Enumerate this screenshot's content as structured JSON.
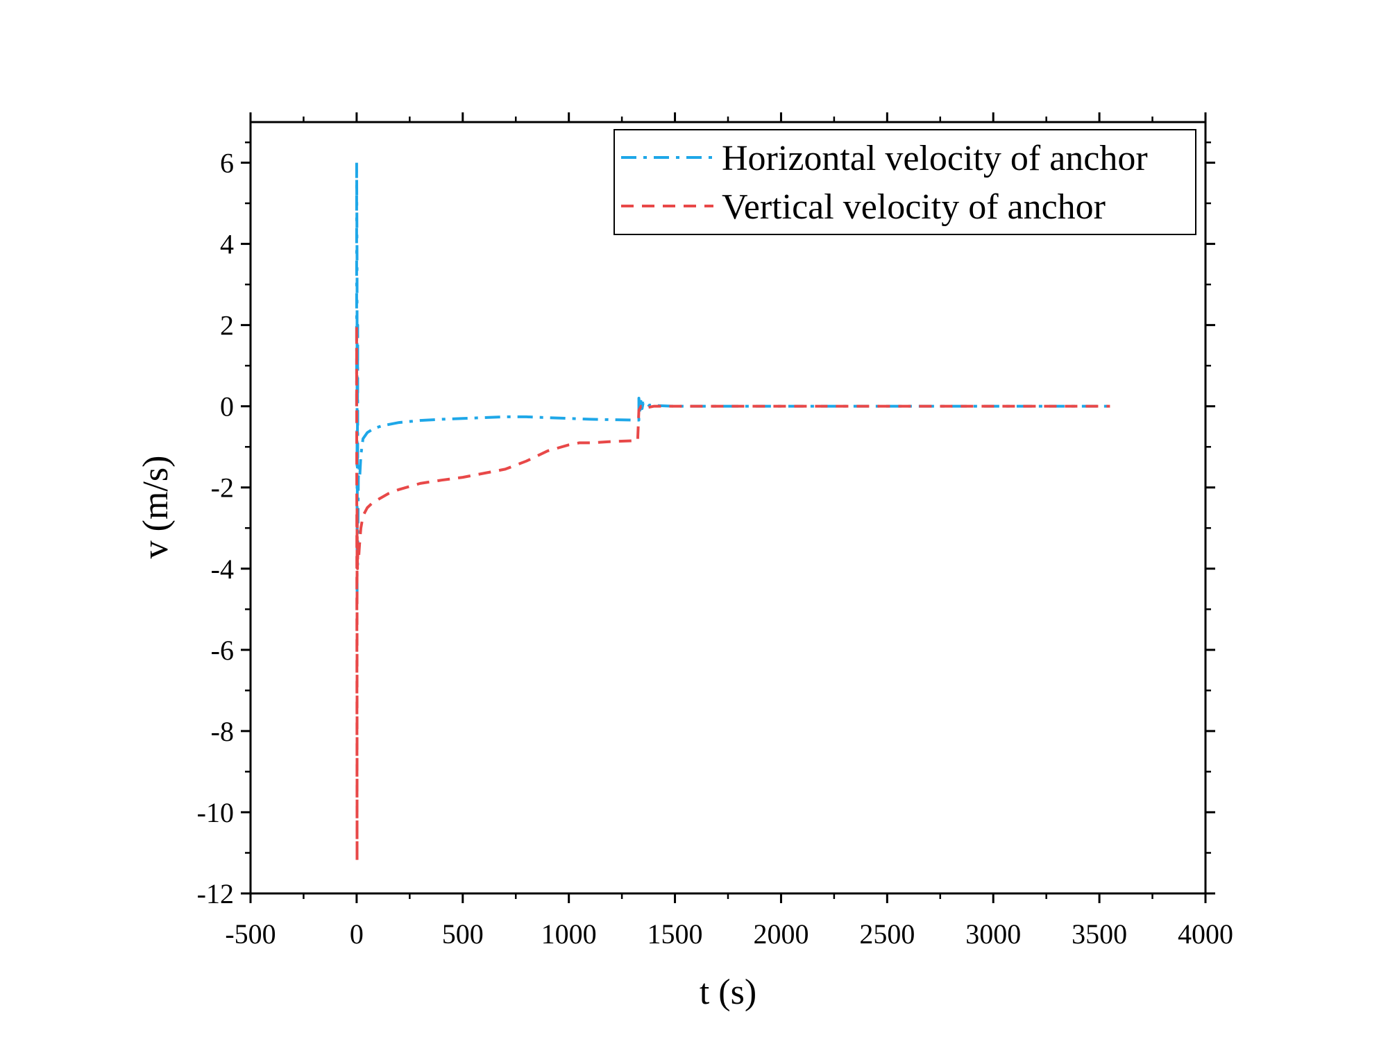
{
  "chart_data": {
    "type": "line",
    "title": "",
    "xlabel": "t (s)",
    "ylabel": "v (m/s)",
    "xlim": [
      -500,
      4000
    ],
    "ylim": [
      -12,
      7
    ],
    "x_ticks": [
      -500,
      0,
      500,
      1000,
      1500,
      2000,
      2500,
      3000,
      3500,
      4000
    ],
    "x_tick_labels": [
      "-500",
      "0",
      "500",
      "1000",
      "1500",
      "2000",
      "2500",
      "3000",
      "3500",
      "4000"
    ],
    "y_ticks": [
      -12,
      -10,
      -8,
      -6,
      -4,
      -2,
      0,
      2,
      4,
      6
    ],
    "y_tick_labels": [
      "-12",
      "-10",
      "-8",
      "-6",
      "-4",
      "-2",
      "0",
      "2",
      "4",
      "6"
    ],
    "grid": false,
    "legend_position": "top-right",
    "series": [
      {
        "name": "Horizontal velocity of anchor",
        "color": "#1ea7e8",
        "dash": "dashdot",
        "x": [
          0,
          0,
          2,
          2,
          5,
          5,
          8,
          10,
          15,
          20,
          30,
          50,
          80,
          120,
          200,
          300,
          400,
          500,
          600,
          700,
          800,
          900,
          1000,
          1100,
          1200,
          1300,
          1325,
          1330,
          1330,
          1335,
          1340,
          1345,
          1350,
          1360,
          1370,
          1380,
          1400,
          1450,
          1500,
          1600,
          2000,
          2500,
          3000,
          3550
        ],
        "y": [
          0,
          6.0,
          3.5,
          -4.8,
          2.0,
          -3.9,
          -1.8,
          -1.5,
          -1.7,
          -1.2,
          -0.8,
          -0.65,
          -0.55,
          -0.48,
          -0.4,
          -0.35,
          -0.32,
          -0.3,
          -0.28,
          -0.26,
          -0.26,
          -0.28,
          -0.3,
          -0.32,
          -0.33,
          -0.34,
          -0.34,
          -0.34,
          0.2,
          -0.1,
          0.12,
          -0.06,
          0.08,
          0.05,
          -0.03,
          0.03,
          0.02,
          0.01,
          0.0,
          0.0,
          0.0,
          0.0,
          0.0,
          0.0
        ]
      },
      {
        "name": "Vertical velocity of anchor",
        "color": "#e84848",
        "dash": "dashed",
        "x": [
          0,
          0,
          2,
          2,
          4,
          6,
          10,
          15,
          20,
          30,
          50,
          80,
          100,
          150,
          200,
          300,
          400,
          500,
          600,
          700,
          800,
          900,
          1000,
          1050,
          1100,
          1200,
          1300,
          1325,
          1325,
          1330,
          1340,
          1350,
          1400,
          1500,
          2000,
          2500,
          3000,
          3550
        ],
        "y": [
          0,
          2.0,
          -11.2,
          -2.5,
          -4.0,
          -3.5,
          -3.7,
          -3.3,
          -3.0,
          -2.7,
          -2.5,
          -2.35,
          -2.3,
          -2.15,
          -2.05,
          -1.9,
          -1.82,
          -1.75,
          -1.65,
          -1.55,
          -1.35,
          -1.1,
          -0.95,
          -0.9,
          -0.9,
          -0.87,
          -0.85,
          -0.85,
          -0.75,
          -0.1,
          0.0,
          -0.05,
          0.0,
          0.0,
          0.0,
          0.0,
          0.0,
          0.0
        ]
      }
    ]
  }
}
